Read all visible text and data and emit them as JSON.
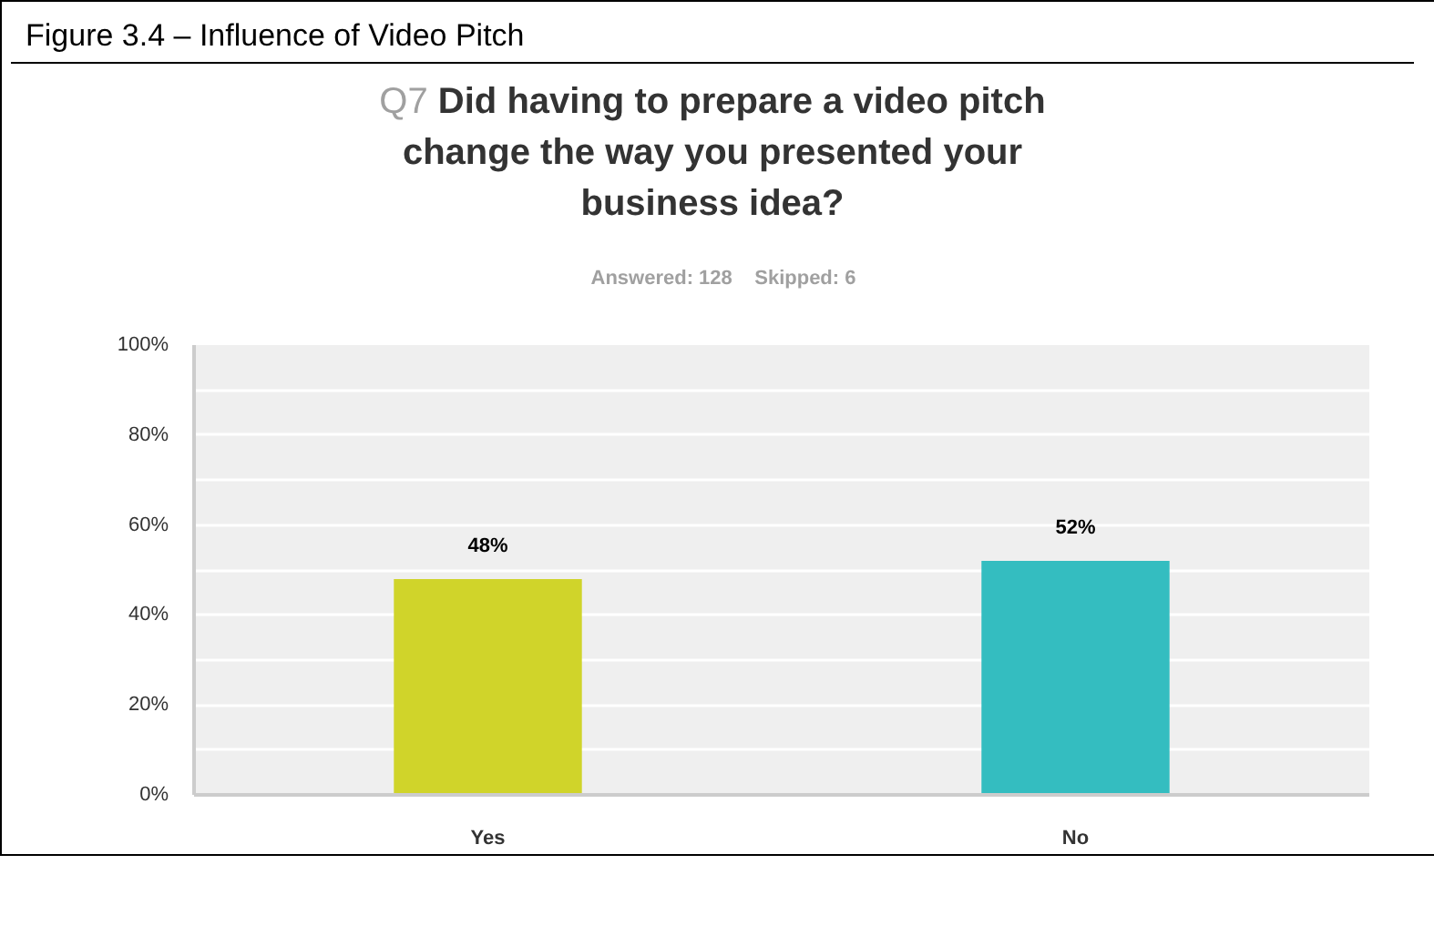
{
  "chart_data": {
    "type": "bar",
    "title": "Figure 3.4 – Influence of Video Pitch",
    "subtitle": "Q7 Did having to prepare a video pitch change the way you presented your business idea?",
    "annotations": [
      "Answered: 128    Skipped: 6"
    ],
    "categories": [
      "Yes",
      "No"
    ],
    "values": [
      48,
      52
    ],
    "colors": [
      "#d0d42a",
      "#34bdc0"
    ],
    "value_labels": [
      "48%",
      "52%"
    ],
    "ylim": [
      0,
      100
    ],
    "yticks": [
      {
        "value": 0,
        "label": "0%"
      },
      {
        "value": 10,
        "label": null
      },
      {
        "value": 20,
        "label": "20%"
      },
      {
        "value": 30,
        "label": null
      },
      {
        "value": 40,
        "label": "40%"
      },
      {
        "value": 50,
        "label": null
      },
      {
        "value": 60,
        "label": "60%"
      },
      {
        "value": 70,
        "label": null
      },
      {
        "value": 80,
        "label": "80%"
      },
      {
        "value": 90,
        "label": null
      },
      {
        "value": 100,
        "label": "100%"
      }
    ],
    "grid": "y"
  }
}
